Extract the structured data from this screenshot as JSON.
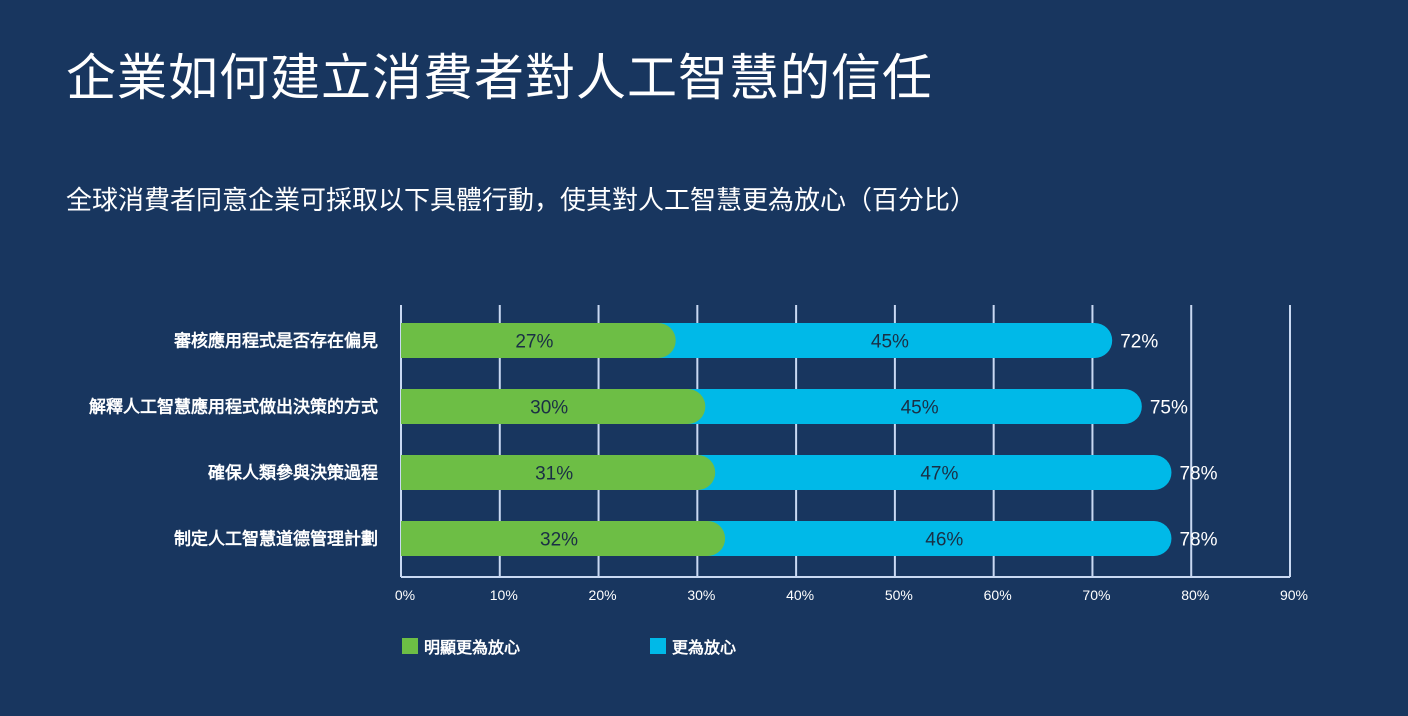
{
  "title": "企業如何建立消費者對人工智慧的信任",
  "subtitle": "全球消費者同意企業可採取以下具體行動，使其對人工智慧更為放心（百分比）",
  "chart_data": {
    "type": "bar",
    "orientation": "horizontal",
    "stacked": true,
    "categories": [
      "審核應用程式是否存在偏見",
      "解釋人工智慧應用程式做出決策的方式",
      "確保人類參與決策過程",
      "制定人工智慧道德管理計劃"
    ],
    "series": [
      {
        "name": "明顯更為放心",
        "color": "#6dbe45",
        "values": [
          27,
          30,
          31,
          32
        ]
      },
      {
        "name": "更為放心",
        "color": "#00b9e8",
        "values": [
          45,
          45,
          47,
          46
        ]
      }
    ],
    "totals": [
      72,
      75,
      78,
      78
    ],
    "xlim": [
      0,
      90
    ],
    "xticks": [
      "0%",
      "10%",
      "20%",
      "30%",
      "40%",
      "50%",
      "60%",
      "70%",
      "80%",
      "90%"
    ],
    "grid": true,
    "legend": "bottom"
  }
}
